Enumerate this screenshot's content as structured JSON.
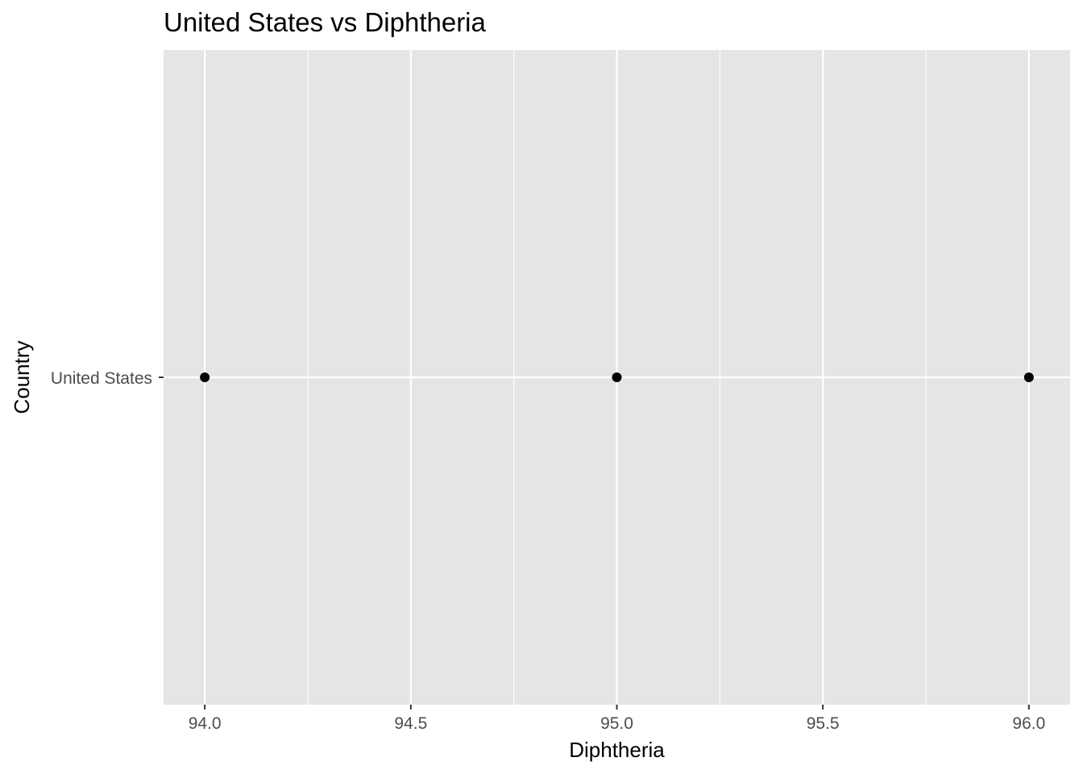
{
  "chart_data": {
    "type": "scatter",
    "title": "United States vs Diphtheria",
    "xlabel": "Diphtheria",
    "ylabel": "Country",
    "xlim": [
      93.9,
      96.1
    ],
    "x_ticks": [
      94.0,
      94.5,
      95.0,
      95.5,
      96.0
    ],
    "x_tick_labels": [
      "94.0",
      "94.5",
      "95.0",
      "95.5",
      "96.0"
    ],
    "categories": [
      "United States"
    ],
    "points": [
      {
        "x": 94.0,
        "y": "United States"
      },
      {
        "x": 95.0,
        "y": "United States"
      },
      {
        "x": 96.0,
        "y": "United States"
      }
    ],
    "grid": true,
    "panel_color": "#e5e5e5",
    "grid_color": "#ffffff",
    "point_color": "#000000"
  }
}
